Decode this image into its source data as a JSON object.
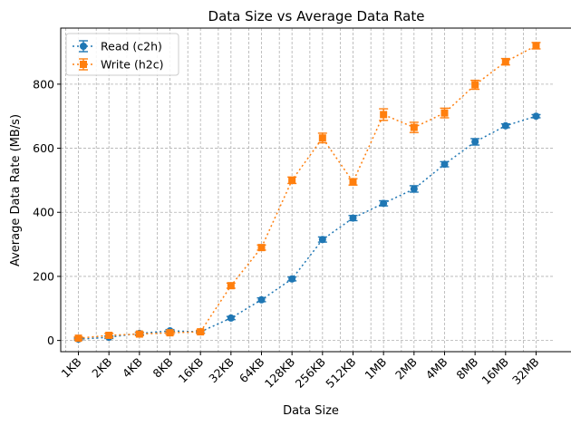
{
  "chart_data": {
    "type": "line",
    "title": "Data Size vs Average Data Rate",
    "xlabel": "Data Size",
    "ylabel": "Average Data Rate (MB/s)",
    "x_scale": "log2",
    "categories": [
      "1KB",
      "2KB",
      "4KB",
      "8KB",
      "16KB",
      "32KB",
      "64KB",
      "128KB",
      "256KB",
      "512KB",
      "1MB",
      "2MB",
      "4MB",
      "8MB",
      "16MB",
      "32MB"
    ],
    "ylim": [
      -35,
      975
    ],
    "yticks": [
      0,
      200,
      400,
      600,
      800
    ],
    "grid": true,
    "legend_position": "top-left",
    "series": [
      {
        "name": "Read (c2h)",
        "color": "#1f77b4",
        "marker": "circle",
        "linestyle": "dotted",
        "values": [
          4,
          10,
          22,
          30,
          27,
          70,
          127,
          192,
          315,
          382,
          428,
          473,
          550,
          620,
          670,
          700
        ],
        "errors": [
          3,
          4,
          4,
          4,
          4,
          5,
          6,
          6,
          8,
          8,
          8,
          10,
          8,
          10,
          6,
          5
        ]
      },
      {
        "name": "Write (h2c)",
        "color": "#ff7f0e",
        "marker": "square",
        "linestyle": "dotted",
        "values": [
          7,
          16,
          20,
          24,
          27,
          171,
          290,
          500,
          632,
          495,
          705,
          665,
          710,
          798,
          870,
          920
        ],
        "errors": [
          4,
          6,
          5,
          5,
          5,
          8,
          8,
          10,
          15,
          10,
          18,
          16,
          15,
          14,
          10,
          10
        ]
      }
    ]
  }
}
